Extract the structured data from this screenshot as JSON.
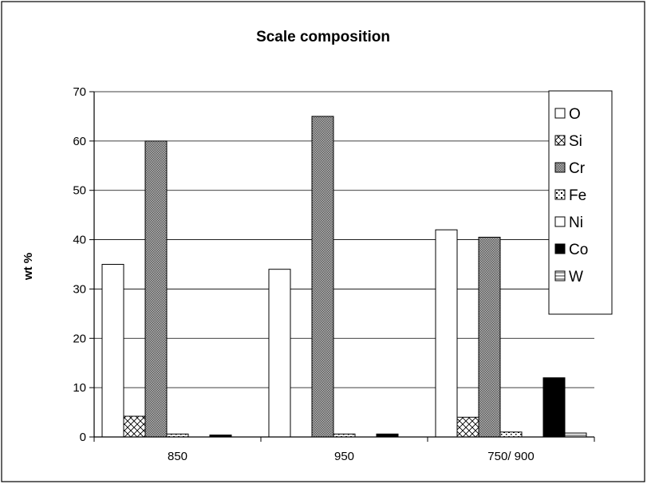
{
  "chart_data": {
    "type": "bar",
    "title": "Scale composition",
    "ylabel": "wt %",
    "xlabel": "",
    "ylim": [
      0,
      70
    ],
    "yticks": [
      0,
      10,
      20,
      30,
      40,
      50,
      60,
      70
    ],
    "grid": true,
    "legend_position": "right",
    "categories": [
      "850",
      "950",
      "750/ 900"
    ],
    "series": [
      {
        "name": "O",
        "values": [
          35,
          34,
          42
        ],
        "pattern": "white",
        "color": "#ffffff"
      },
      {
        "name": "Si",
        "values": [
          4.2,
          0,
          4
        ],
        "pattern": "crosshatch",
        "color": "#ffffff"
      },
      {
        "name": "Cr",
        "values": [
          60,
          65,
          40.5
        ],
        "pattern": "darkdots",
        "color": "#9a9a9a"
      },
      {
        "name": "Fe",
        "values": [
          0.6,
          0.6,
          1
        ],
        "pattern": "speckle",
        "color": "#d8d8d8"
      },
      {
        "name": "Ni",
        "values": [
          0,
          0,
          0
        ],
        "pattern": "white",
        "color": "#ffffff"
      },
      {
        "name": "Co",
        "values": [
          0.4,
          0.6,
          12
        ],
        "pattern": "solid",
        "color": "#000000"
      },
      {
        "name": "W",
        "values": [
          0,
          0,
          0.8
        ],
        "pattern": "hline",
        "color": "#ffffff"
      }
    ]
  }
}
